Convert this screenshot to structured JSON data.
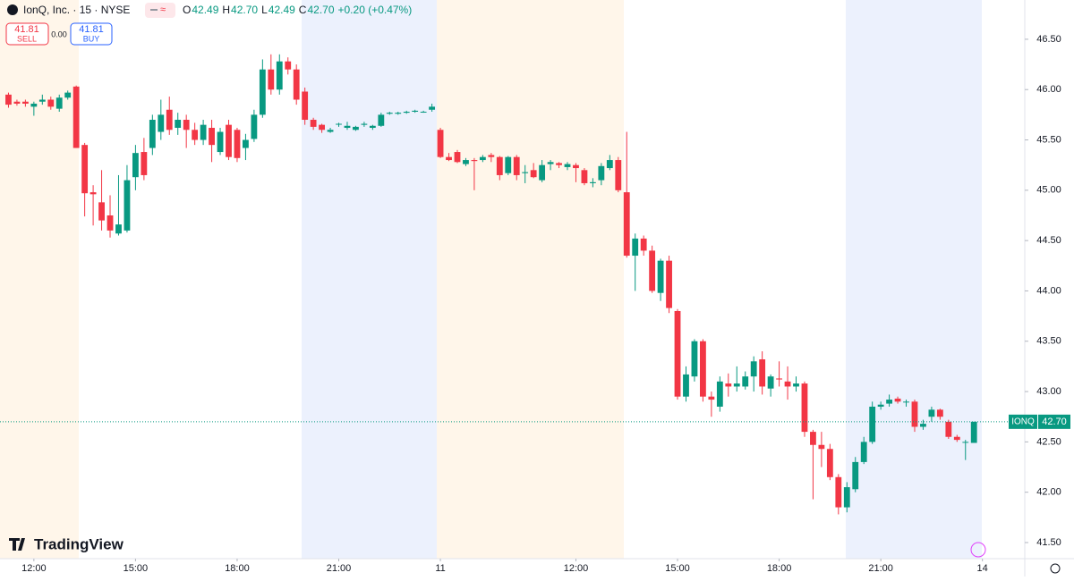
{
  "header": {
    "symbol": "IonQ, Inc. · 15 · NYSE",
    "ohlc": [
      {
        "label": "O",
        "value": "42.49"
      },
      {
        "label": "H",
        "value": "42.70"
      },
      {
        "label": "L",
        "value": "42.49"
      },
      {
        "label": "C",
        "value": "42.70"
      }
    ],
    "change": "+0.20 (+0.47%)",
    "sell_price": "41.81",
    "sell_label": "SELL",
    "spread": "0.00",
    "buy_price": "41.81",
    "buy_label": "BUY",
    "brand": "TradingView",
    "price_tag_symbol": "IONQ",
    "price_tag_value": "42.70"
  },
  "chart_data": {
    "type": "candlestick",
    "x": [
      -3,
      -2,
      -1,
      0,
      1,
      2,
      3,
      4,
      5,
      6,
      7,
      8,
      9,
      10,
      11,
      12,
      13,
      14,
      15,
      16,
      17,
      18,
      19,
      20,
      21,
      22,
      23,
      24,
      25,
      26,
      27,
      28,
      29,
      30,
      31,
      32,
      33,
      34,
      35,
      36,
      37,
      38,
      39,
      40,
      41,
      42,
      43,
      44,
      45,
      46,
      47,
      48,
      49,
      50,
      51,
      52,
      53,
      54,
      55,
      56,
      57,
      58,
      59,
      60,
      61,
      62,
      63,
      64,
      65,
      66,
      67,
      68,
      69,
      70,
      71,
      72,
      73,
      74,
      75,
      76,
      77,
      78,
      79,
      80,
      81,
      82,
      83,
      84,
      85,
      86,
      87,
      88,
      89,
      90,
      91,
      92,
      93,
      94,
      95,
      96,
      97,
      98,
      99,
      100,
      101,
      102,
      103,
      104,
      105,
      106,
      107,
      108,
      109,
      110,
      111
    ],
    "open": [
      45.95,
      45.88,
      45.88,
      45.83,
      45.88,
      45.9,
      45.81,
      45.92,
      46.03,
      45.45,
      44.98,
      44.88,
      44.75,
      44.57,
      44.6,
      45.13,
      45.38,
      45.42,
      45.58,
      45.8,
      45.62,
      45.7,
      45.6,
      45.5,
      45.62,
      45.38,
      45.65,
      45.6,
      45.42,
      45.51,
      45.75,
      46.2,
      46.0,
      46.28,
      46.2,
      45.98,
      45.7,
      45.65,
      45.58,
      45.66,
      45.62,
      45.6,
      45.65,
      45.62,
      45.64,
      45.76,
      45.76,
      45.77,
      45.78,
      45.78,
      45.8,
      45.6,
      45.33,
      45.38,
      45.26,
      45.3,
      45.3,
      45.35,
      45.33,
      45.17,
      45.33,
      45.17,
      45.2,
      45.1,
      45.26,
      45.27,
      45.23,
      45.25,
      45.2,
      45.07,
      45.1,
      45.22,
      45.3,
      44.98,
      44.35,
      44.52,
      44.4,
      43.98,
      44.3,
      43.8,
      42.95,
      43.15,
      43.5,
      42.95,
      42.85,
      43.08,
      43.05,
      43.05,
      43.15,
      43.32,
      43.03,
      43.13,
      43.1,
      43.05,
      43.08,
      42.6,
      42.47,
      42.43,
      42.15,
      41.85,
      42.03,
      42.3,
      42.5,
      42.85,
      42.88,
      42.93,
      42.9,
      42.9,
      42.65,
      42.75,
      42.82,
      42.7,
      42.55,
      42.5,
      42.49
    ],
    "high": [
      45.97,
      45.9,
      45.9,
      45.88,
      45.95,
      45.93,
      45.95,
      45.99,
      46.04,
      45.47,
      45.05,
      45.2,
      44.95,
      45.15,
      45.25,
      45.45,
      45.52,
      45.75,
      45.9,
      45.93,
      45.77,
      45.75,
      45.67,
      45.7,
      45.7,
      45.62,
      45.7,
      45.62,
      45.56,
      45.8,
      46.3,
      46.35,
      46.35,
      46.32,
      46.25,
      46.02,
      45.72,
      45.66,
      45.62,
      45.67,
      45.68,
      45.64,
      45.68,
      45.65,
      45.77,
      45.78,
      45.78,
      45.79,
      45.8,
      45.79,
      45.86,
      45.62,
      45.37,
      45.4,
      45.32,
      45.32,
      45.35,
      45.37,
      45.34,
      45.34,
      45.35,
      45.25,
      45.27,
      45.3,
      45.3,
      45.28,
      45.28,
      45.27,
      45.22,
      45.12,
      45.27,
      45.35,
      45.33,
      45.58,
      44.57,
      44.55,
      44.45,
      44.32,
      44.35,
      43.82,
      43.25,
      43.52,
      43.52,
      43.0,
      43.15,
      43.18,
      43.25,
      43.2,
      43.35,
      43.4,
      43.17,
      43.3,
      43.25,
      43.15,
      43.1,
      42.62,
      42.6,
      42.48,
      42.18,
      42.1,
      42.35,
      42.55,
      42.9,
      42.9,
      42.97,
      42.95,
      42.92,
      42.92,
      42.72,
      42.85,
      42.83,
      42.72,
      42.57,
      42.52,
      42.7
    ],
    "low": [
      45.82,
      45.84,
      45.83,
      45.74,
      45.85,
      45.8,
      45.78,
      45.9,
      45.42,
      44.74,
      44.65,
      44.6,
      44.53,
      44.55,
      44.58,
      45.0,
      45.1,
      45.35,
      45.5,
      45.55,
      45.55,
      45.42,
      45.45,
      45.45,
      45.28,
      45.35,
      45.3,
      45.28,
      45.3,
      45.48,
      45.72,
      45.95,
      45.95,
      46.15,
      45.85,
      45.65,
      45.6,
      45.57,
      45.57,
      45.63,
      45.6,
      45.59,
      45.63,
      45.6,
      45.63,
      45.75,
      45.75,
      45.76,
      45.77,
      45.77,
      45.78,
      45.32,
      45.29,
      45.27,
      45.24,
      45.0,
      45.28,
      45.28,
      45.1,
      45.15,
      45.1,
      45.07,
      45.12,
      45.08,
      45.2,
      45.22,
      45.2,
      45.08,
      45.05,
      45.03,
      45.05,
      45.2,
      44.98,
      44.33,
      44.0,
      44.35,
      43.98,
      43.9,
      43.78,
      42.92,
      42.9,
      43.1,
      42.9,
      42.75,
      42.8,
      42.95,
      43.0,
      43.02,
      43.0,
      42.97,
      42.95,
      43.05,
      42.92,
      43.0,
      42.55,
      41.93,
      42.25,
      42.12,
      41.78,
      41.8,
      42.0,
      42.28,
      42.48,
      42.82,
      42.85,
      42.88,
      42.85,
      42.6,
      42.62,
      42.7,
      42.72,
      42.53,
      42.5,
      42.32,
      42.49
    ],
    "close": [
      45.85,
      45.86,
      45.86,
      45.86,
      45.9,
      45.83,
      45.92,
      45.97,
      45.42,
      44.97,
      44.96,
      44.7,
      44.6,
      44.66,
      45.1,
      45.37,
      45.15,
      45.7,
      45.75,
      45.6,
      45.7,
      45.6,
      45.5,
      45.65,
      45.45,
      45.58,
      45.33,
      45.32,
      45.5,
      45.75,
      46.2,
      46.0,
      46.28,
      46.2,
      45.9,
      45.7,
      45.63,
      45.6,
      45.6,
      45.66,
      45.64,
      45.63,
      45.66,
      45.64,
      45.75,
      45.77,
      45.77,
      45.78,
      45.79,
      45.78,
      45.83,
      45.33,
      45.3,
      45.28,
      45.3,
      45.29,
      45.33,
      45.33,
      45.15,
      45.33,
      45.15,
      45.18,
      45.13,
      45.25,
      45.28,
      45.25,
      45.26,
      45.22,
      45.07,
      45.08,
      45.24,
      45.3,
      45.0,
      44.35,
      44.52,
      44.4,
      44.0,
      44.3,
      43.83,
      42.95,
      43.17,
      43.5,
      42.95,
      42.92,
      43.1,
      43.05,
      43.08,
      43.15,
      43.3,
      43.05,
      43.15,
      43.12,
      43.05,
      43.08,
      42.6,
      42.47,
      42.43,
      42.15,
      41.85,
      42.05,
      42.3,
      42.5,
      42.85,
      42.87,
      42.92,
      42.9,
      42.9,
      42.65,
      42.68,
      42.82,
      42.75,
      42.55,
      42.52,
      42.5,
      42.7
    ],
    "up_color": "#089981",
    "down_color": "#f23645",
    "xlim": [
      -4,
      117
    ],
    "ylim": [
      41.34,
      46.89
    ],
    "xticks": [
      {
        "value": 0,
        "label": "12:00"
      },
      {
        "value": 12,
        "label": "15:00"
      },
      {
        "value": 24,
        "label": "18:00"
      },
      {
        "value": 36,
        "label": "21:00"
      },
      {
        "value": 48,
        "label": "11"
      },
      {
        "value": 64,
        "label": "12:00"
      },
      {
        "value": 76,
        "label": "15:00"
      },
      {
        "value": 88,
        "label": "18:00"
      },
      {
        "value": 100,
        "label": "21:00"
      },
      {
        "value": 112,
        "label": "14"
      }
    ],
    "yticks": [
      {
        "value": 41.5,
        "label": "41.50"
      },
      {
        "value": 42,
        "label": "42.00"
      },
      {
        "value": 42.5,
        "label": "42.50"
      },
      {
        "value": 43,
        "label": "43.00"
      },
      {
        "value": 43.5,
        "label": "43.50"
      },
      {
        "value": 44,
        "label": "44.00"
      },
      {
        "value": 44.5,
        "label": "44.50"
      },
      {
        "value": 45,
        "label": "45.00"
      },
      {
        "value": 45.5,
        "label": "45.50"
      },
      {
        "value": 46,
        "label": "46.00"
      },
      {
        "value": 46.5,
        "label": "46.50"
      }
    ],
    "grid": false
  }
}
